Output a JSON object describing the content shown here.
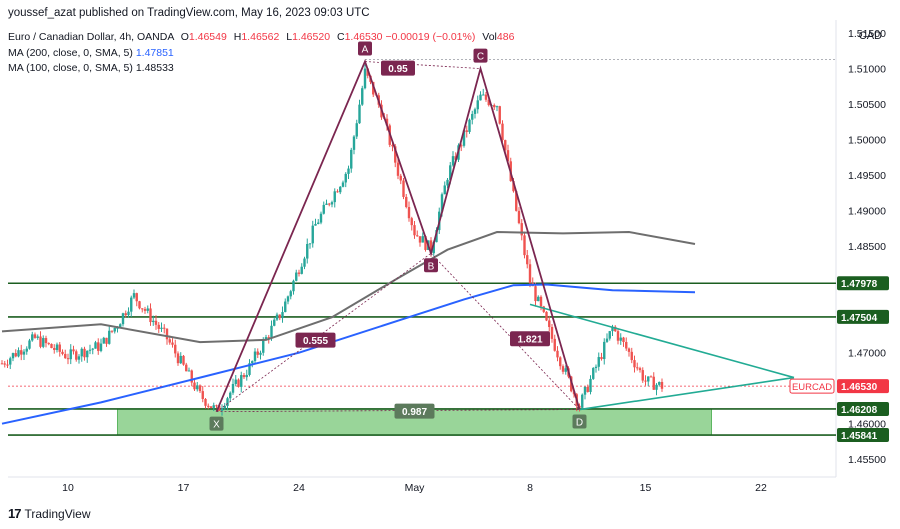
{
  "header": {
    "publisher_line": "youssef_azat published on TradingView.com, May 16, 2023 09:03 UTC"
  },
  "legend": {
    "symbol_title": "Euro / Canadian Dollar, 4h, OANDA",
    "open_label": "O",
    "open": "1.46549",
    "high_label": "H",
    "high": "1.46562",
    "low_label": "L",
    "low": "1.46520",
    "close_label": "C",
    "close": "1.46530",
    "change": "−0.00019 (−0.01%)",
    "volume_label": "Vol",
    "volume": "486",
    "ma200_label": "MA (200, close, 0, SMA, 5)",
    "ma200_value": "1.47851",
    "ma100_label": "MA (100, close, 0, SMA, 5)",
    "ma100_value": "1.48533"
  },
  "price_scale": {
    "currency": "CAD"
  },
  "footer": {
    "brand": "TradingView"
  },
  "colors": {
    "up": "#26a69a",
    "down": "#ef5350",
    "pattern": "#7b2650",
    "triangle": "#22ab94",
    "ma200": "#2962ff",
    "ma100": "#6e6e6e",
    "level_line": "#1b5e20",
    "zone": "#8fd18f",
    "last_price": "#f23645"
  },
  "chart_data": {
    "type": "candlestick",
    "symbol": "EURCAD",
    "ylim": [
      1.4525,
      1.516
    ],
    "y_ticks": [
      "1.45500",
      "1.46000",
      "1.46500",
      "1.47000",
      "1.47500",
      "1.48000",
      "1.48500",
      "1.49000",
      "1.49500",
      "1.50000",
      "1.50500",
      "1.51000",
      "1.51500"
    ],
    "x_ticks": [
      {
        "label": "10",
        "date": "2023-04-10"
      },
      {
        "label": "17",
        "date": "2023-04-17"
      },
      {
        "label": "24",
        "date": "2023-04-24"
      },
      {
        "label": "May",
        "date": "2023-05-01"
      },
      {
        "label": "8",
        "date": "2023-05-08"
      },
      {
        "label": "15",
        "date": "2023-05-15"
      },
      {
        "label": "22",
        "date": "2023-05-22"
      }
    ],
    "price_path": [
      {
        "date": "2023-04-06",
        "price": 1.4685
      },
      {
        "date": "2023-04-08",
        "price": 1.472
      },
      {
        "date": "2023-04-10",
        "price": 1.4695
      },
      {
        "date": "2023-04-12",
        "price": 1.471
      },
      {
        "date": "2023-04-13",
        "price": 1.474
      },
      {
        "date": "2023-04-14",
        "price": 1.478
      },
      {
        "date": "2023-04-16",
        "price": 1.472
      },
      {
        "date": "2023-04-18",
        "price": 1.464
      },
      {
        "date": "2023-04-19",
        "price": 1.4618
      },
      {
        "date": "2023-04-21",
        "price": 1.468
      },
      {
        "date": "2023-04-23",
        "price": 1.476
      },
      {
        "date": "2023-04-25",
        "price": 1.488
      },
      {
        "date": "2023-04-27",
        "price": 1.496
      },
      {
        "date": "2023-04-28",
        "price": 1.5095
      },
      {
        "date": "2023-04-29",
        "price": 1.504
      },
      {
        "date": "2023-05-01",
        "price": 1.487
      },
      {
        "date": "2023-05-02",
        "price": 1.4845
      },
      {
        "date": "2023-05-03",
        "price": 1.495
      },
      {
        "date": "2023-05-05",
        "price": 1.506
      },
      {
        "date": "2023-05-06",
        "price": 1.505
      },
      {
        "date": "2023-05-07",
        "price": 1.492
      },
      {
        "date": "2023-05-08",
        "price": 1.48
      },
      {
        "date": "2023-05-09",
        "price": 1.474
      },
      {
        "date": "2023-05-10",
        "price": 1.468
      },
      {
        "date": "2023-05-11",
        "price": 1.4625
      },
      {
        "date": "2023-05-12",
        "price": 1.468
      },
      {
        "date": "2023-05-13",
        "price": 1.4735
      },
      {
        "date": "2023-05-14",
        "price": 1.47
      },
      {
        "date": "2023-05-15",
        "price": 1.466
      },
      {
        "date": "2023-05-16",
        "price": 1.4653
      }
    ],
    "pattern_points": [
      {
        "label": "X",
        "date": "2023-04-19",
        "price": 1.4617
      },
      {
        "label": "A",
        "date": "2023-04-28",
        "price": 1.511
      },
      {
        "label": "B",
        "date": "2023-05-02",
        "price": 1.484
      },
      {
        "label": "C",
        "date": "2023-05-05",
        "price": 1.51
      },
      {
        "label": "D",
        "date": "2023-05-11",
        "price": 1.462
      }
    ],
    "ratios": [
      {
        "label": "0.95",
        "date": "2023-04-30",
        "price": 1.51
      },
      {
        "label": "0.555",
        "date": "2023-04-25",
        "price": 1.4717
      },
      {
        "label": "1.821",
        "date": "2023-05-08",
        "price": 1.4719
      },
      {
        "label": "0.987",
        "date": "2023-05-01",
        "price": 1.4617
      }
    ],
    "moving_averages": [
      {
        "name": "MA 200",
        "points": [
          {
            "date": "2023-04-06",
            "price": 1.46
          },
          {
            "date": "2023-04-12",
            "price": 1.463
          },
          {
            "date": "2023-04-18",
            "price": 1.4665
          },
          {
            "date": "2023-04-24",
            "price": 1.47
          },
          {
            "date": "2023-04-30",
            "price": 1.4745
          },
          {
            "date": "2023-05-04",
            "price": 1.4775
          },
          {
            "date": "2023-05-07",
            "price": 1.4795
          },
          {
            "date": "2023-05-09",
            "price": 1.4796
          },
          {
            "date": "2023-05-13",
            "price": 1.4788
          },
          {
            "date": "2023-05-18",
            "price": 1.4785
          }
        ]
      },
      {
        "name": "MA 100",
        "points": [
          {
            "date": "2023-04-06",
            "price": 1.473
          },
          {
            "date": "2023-04-12",
            "price": 1.474
          },
          {
            "date": "2023-04-18",
            "price": 1.4715
          },
          {
            "date": "2023-04-22",
            "price": 1.4718
          },
          {
            "date": "2023-04-26",
            "price": 1.475
          },
          {
            "date": "2023-04-30",
            "price": 1.4805
          },
          {
            "date": "2023-05-03",
            "price": 1.4845
          },
          {
            "date": "2023-05-06",
            "price": 1.487
          },
          {
            "date": "2023-05-10",
            "price": 1.4868
          },
          {
            "date": "2023-05-14",
            "price": 1.487
          },
          {
            "date": "2023-05-18",
            "price": 1.4853
          }
        ]
      }
    ],
    "triangle": {
      "upper": [
        {
          "date": "2023-05-08",
          "price": 1.4768
        },
        {
          "date": "2023-05-24",
          "price": 1.4665
        }
      ],
      "lower": [
        {
          "date": "2023-05-11",
          "price": 1.462
        },
        {
          "date": "2023-05-24",
          "price": 1.4665
        }
      ]
    },
    "horizontal_levels": [
      {
        "price": 1.47978,
        "label": "1.47978"
      },
      {
        "price": 1.47504,
        "label": "1.47504"
      },
      {
        "price": 1.46208,
        "label": "1.46208"
      },
      {
        "price": 1.45841,
        "label": "1.45841"
      }
    ],
    "zone": {
      "top": 1.46208,
      "bottom": 1.45841,
      "from": "2023-04-13",
      "to": "2023-05-19"
    },
    "a_level_price": 1.5113,
    "last_price": {
      "symbol": "EURCAD",
      "price": 1.4653,
      "label": "1.46530"
    }
  }
}
